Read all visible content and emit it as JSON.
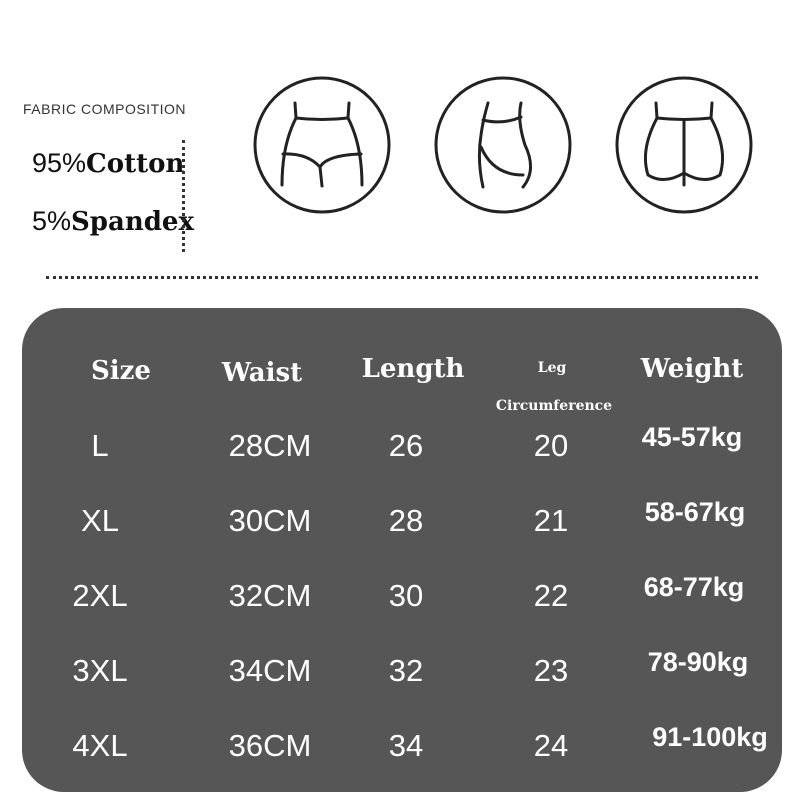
{
  "composition": {
    "title": "FABRIC COMPOSITION",
    "items": [
      {
        "percent": "95%",
        "material": "Cotton"
      },
      {
        "percent": "5%",
        "material": "Spandex"
      }
    ]
  },
  "icons": [
    "thong-front-icon",
    "thong-side-icon",
    "thong-back-icon"
  ],
  "colors": {
    "panel": "#565656",
    "text": "#ffffff"
  },
  "table": {
    "headers": {
      "size": "Size",
      "waist": "Waist",
      "length": "Length",
      "leg_line1": "Leg",
      "leg_line2": "Circumference",
      "weight": "Weight"
    },
    "rows": [
      {
        "size": "L",
        "waist": "28CM",
        "length": "26",
        "leg": "20",
        "weight": "45-57kg"
      },
      {
        "size": "XL",
        "waist": "30CM",
        "length": "28",
        "leg": "21",
        "weight": "58-67kg"
      },
      {
        "size": "2XL",
        "waist": "32CM",
        "length": "30",
        "leg": "22",
        "weight": "68-77kg"
      },
      {
        "size": "3XL",
        "waist": "34CM",
        "length": "32",
        "leg": "23",
        "weight": "78-90kg"
      },
      {
        "size": "4XL",
        "waist": "36CM",
        "length": "34",
        "leg": "24",
        "weight": "91-100kg"
      }
    ]
  }
}
